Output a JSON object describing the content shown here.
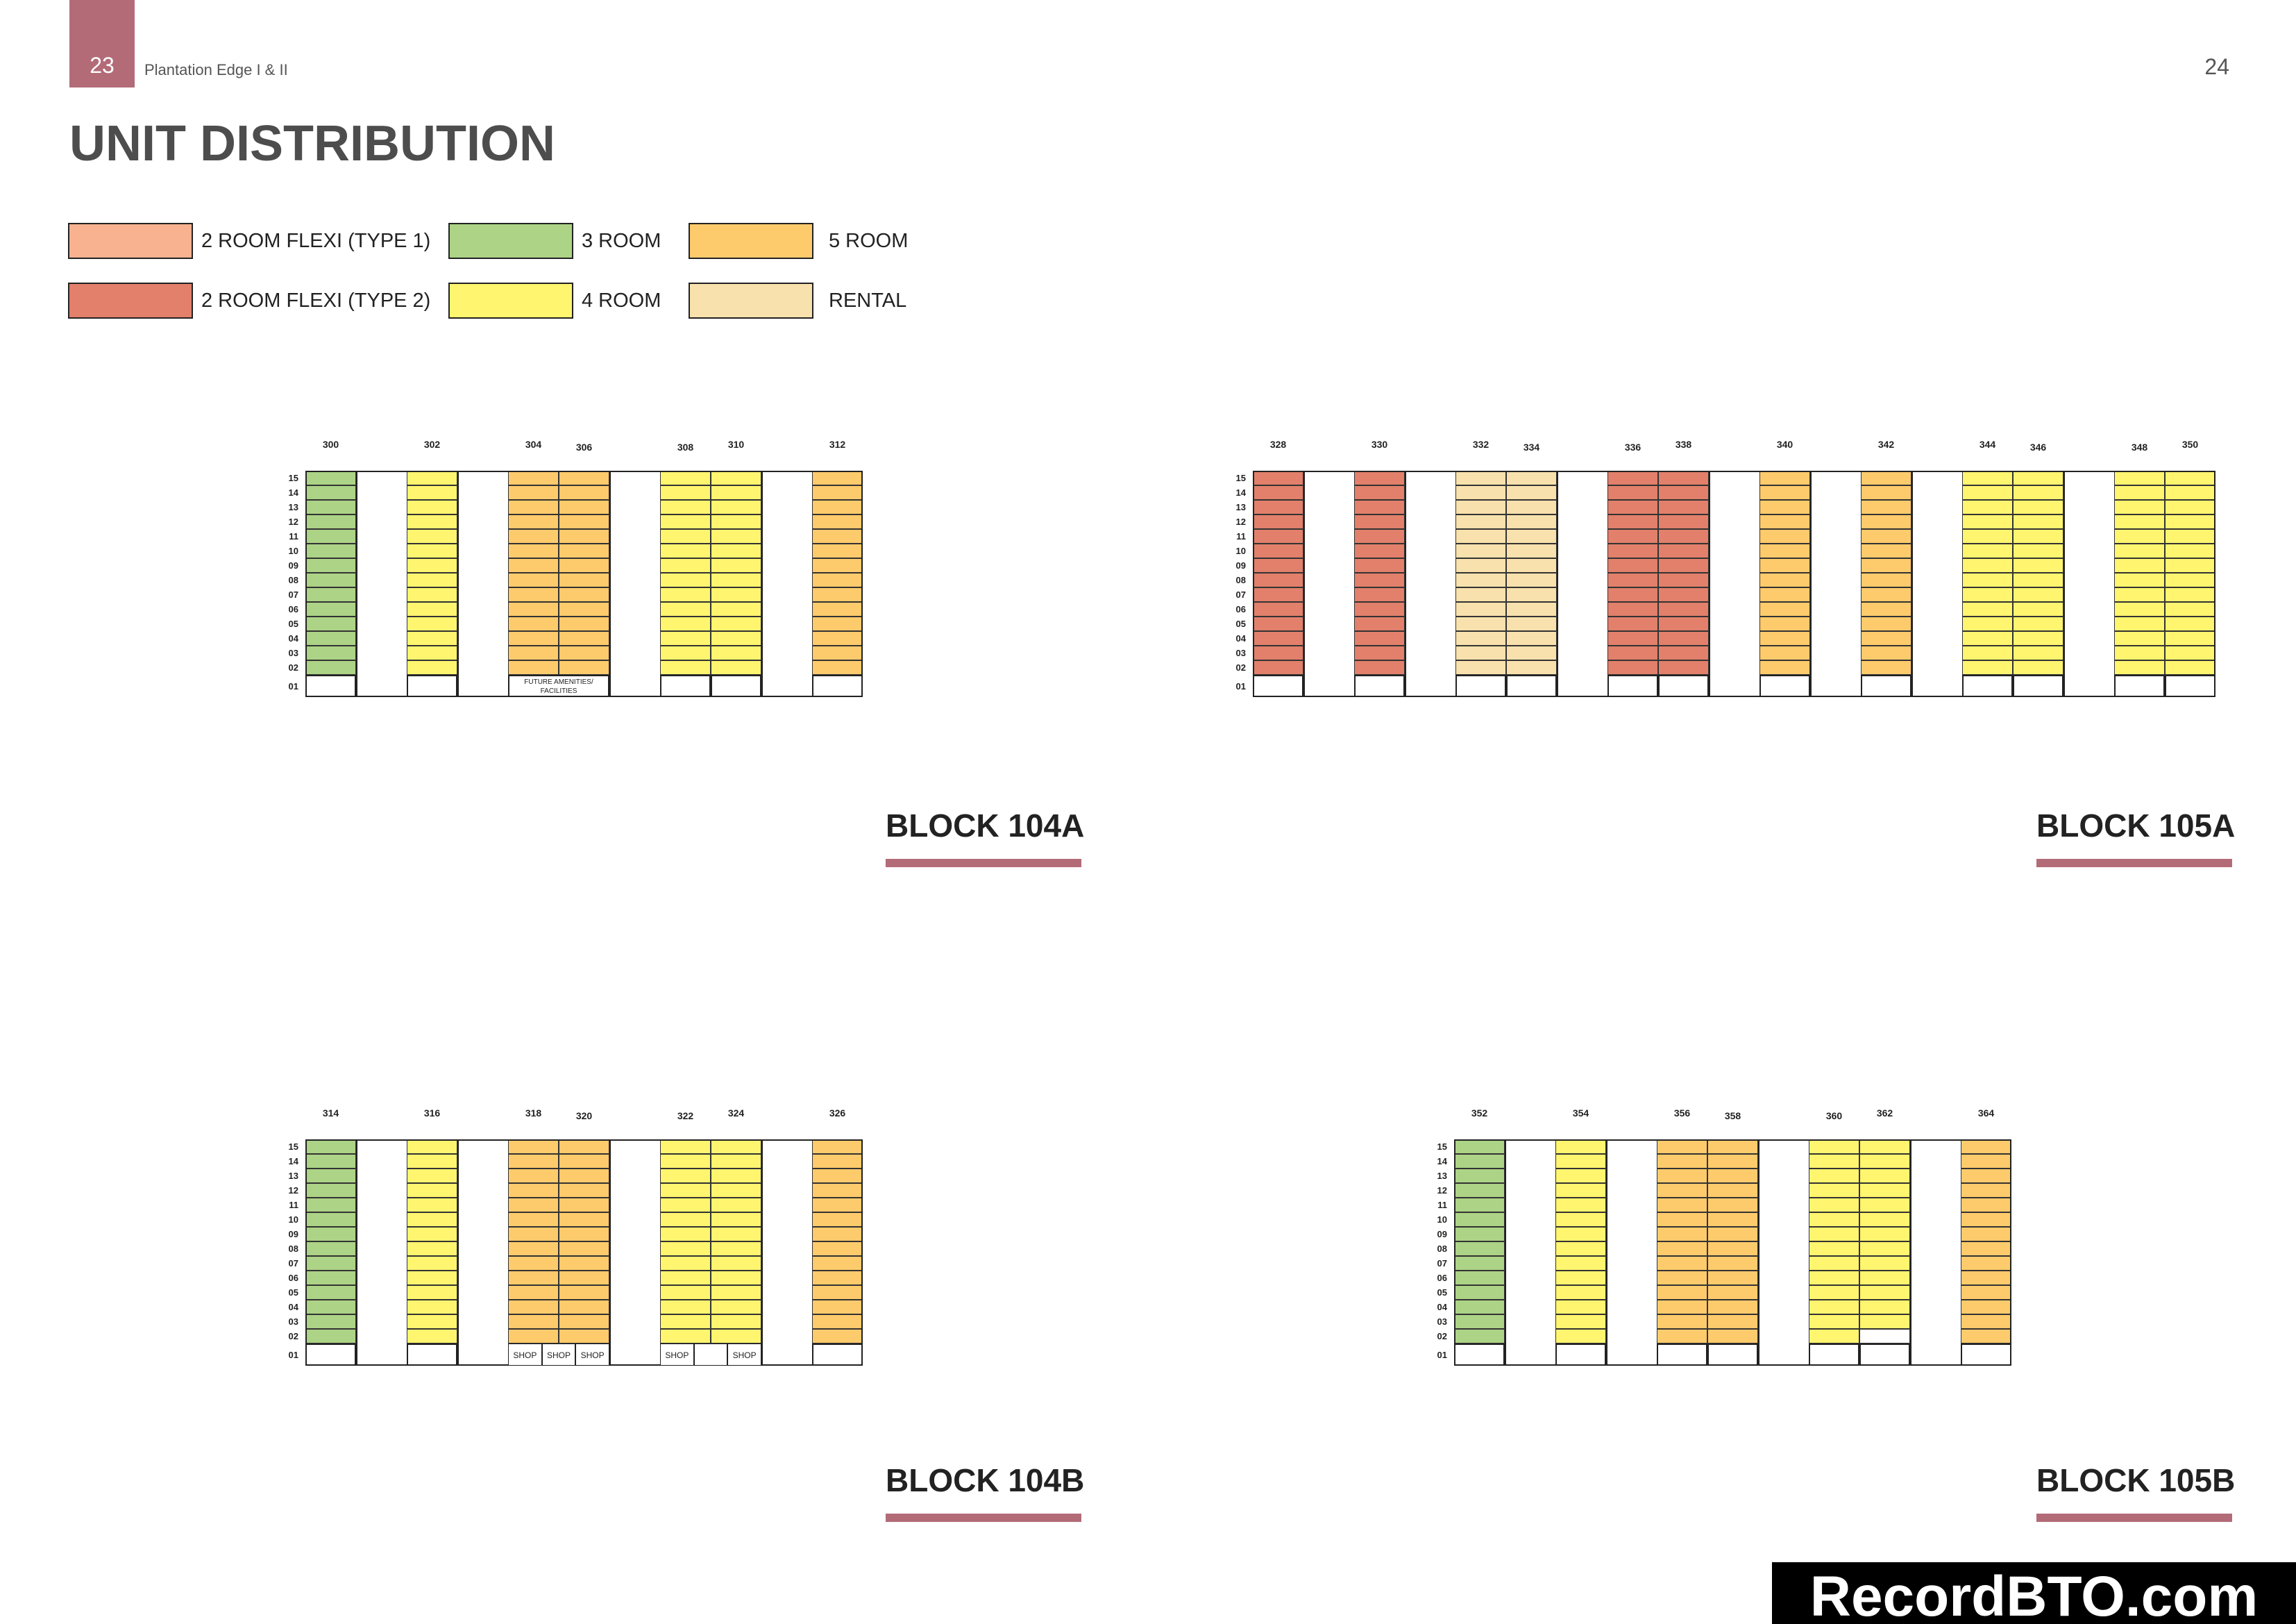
{
  "header": {
    "page_left": "23",
    "page_right": "24",
    "project": "Plantation Edge I & II",
    "title": "UNIT DISTRIBUTION"
  },
  "colors": {
    "2rf1": "#f9b28f",
    "2rf2": "#e2806b",
    "3r": "#acd386",
    "4r": "#fff56f",
    "5r": "#fecb6c",
    "rental": "#f9e1ad",
    "accent": "#b36b78"
  },
  "legend": [
    {
      "key": "2rf1",
      "label": "2 ROOM FLEXI (TYPE 1)"
    },
    {
      "key": "3r",
      "label": "3 ROOM"
    },
    {
      "key": "5r",
      "label": "5 ROOM"
    },
    {
      "key": "2rf2",
      "label": "2 ROOM FLEXI (TYPE 2)"
    },
    {
      "key": "4r",
      "label": "4 ROOM"
    },
    {
      "key": "rental",
      "label": "RENTAL"
    }
  ],
  "floors": [
    "15",
    "14",
    "13",
    "12",
    "11",
    "10",
    "09",
    "08",
    "07",
    "06",
    "05",
    "04",
    "03",
    "02",
    "01"
  ],
  "blocks": [
    {
      "name": "BLOCK 104A",
      "columns": [
        {
          "unit": "300",
          "type": "3r"
        },
        {
          "unit": "",
          "type": "void"
        },
        {
          "unit": "302",
          "type": "4r"
        },
        {
          "unit": "",
          "type": "void"
        },
        {
          "unit": "304",
          "type": "5r"
        },
        {
          "unit": "306",
          "type": "5r"
        },
        {
          "unit": "",
          "type": "void"
        },
        {
          "unit": "308",
          "type": "4r"
        },
        {
          "unit": "310",
          "type": "4r"
        },
        {
          "unit": "",
          "type": "void"
        },
        {
          "unit": "312",
          "type": "5r"
        }
      ],
      "ground_note": "FUTURE AMENITIES/ FACILITIES"
    },
    {
      "name": "BLOCK 105A",
      "columns": [
        {
          "unit": "328",
          "type": "2rf2"
        },
        {
          "unit": "",
          "type": "void"
        },
        {
          "unit": "330",
          "type": "2rf2"
        },
        {
          "unit": "",
          "type": "void"
        },
        {
          "unit": "332",
          "type": "rental"
        },
        {
          "unit": "334",
          "type": "rental"
        },
        {
          "unit": "",
          "type": "void"
        },
        {
          "unit": "336",
          "type": "2rf2"
        },
        {
          "unit": "338",
          "type": "2rf2"
        },
        {
          "unit": "",
          "type": "void"
        },
        {
          "unit": "340",
          "type": "5r"
        },
        {
          "unit": "",
          "type": "void"
        },
        {
          "unit": "342",
          "type": "5r"
        },
        {
          "unit": "",
          "type": "void"
        },
        {
          "unit": "344",
          "type": "4r"
        },
        {
          "unit": "346",
          "type": "4r"
        },
        {
          "unit": "",
          "type": "void"
        },
        {
          "unit": "348",
          "type": "4r"
        },
        {
          "unit": "350",
          "type": "4r"
        }
      ]
    },
    {
      "name": "BLOCK 104B",
      "columns": [
        {
          "unit": "314",
          "type": "3r"
        },
        {
          "unit": "",
          "type": "void"
        },
        {
          "unit": "316",
          "type": "4r"
        },
        {
          "unit": "",
          "type": "void"
        },
        {
          "unit": "318",
          "type": "5r"
        },
        {
          "unit": "320",
          "type": "5r"
        },
        {
          "unit": "",
          "type": "void"
        },
        {
          "unit": "322",
          "type": "4r"
        },
        {
          "unit": "324",
          "type": "4r"
        },
        {
          "unit": "",
          "type": "void"
        },
        {
          "unit": "326",
          "type": "5r"
        }
      ],
      "shop_label": "SHOP"
    },
    {
      "name": "BLOCK 105B",
      "columns": [
        {
          "unit": "352",
          "type": "3r"
        },
        {
          "unit": "",
          "type": "void"
        },
        {
          "unit": "354",
          "type": "4r"
        },
        {
          "unit": "",
          "type": "void"
        },
        {
          "unit": "356",
          "type": "5r"
        },
        {
          "unit": "358",
          "type": "5r"
        },
        {
          "unit": "",
          "type": "void"
        },
        {
          "unit": "360",
          "type": "4r"
        },
        {
          "unit": "362",
          "type": "4r"
        },
        {
          "unit": "",
          "type": "void"
        },
        {
          "unit": "364",
          "type": "5r"
        }
      ]
    }
  ],
  "watermark": "RecordBTO.com"
}
